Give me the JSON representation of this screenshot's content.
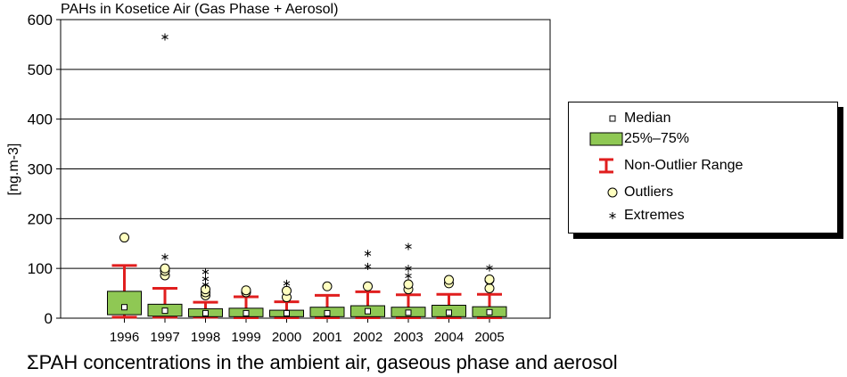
{
  "chart_data": {
    "type": "box",
    "title": "PAHs in Kosetice Air (Gas Phase + Aerosol)",
    "ylabel": "[ng.m-3]",
    "ylim": [
      0,
      600
    ],
    "yticks": [
      0,
      100,
      200,
      300,
      400,
      500,
      600
    ],
    "grid": true,
    "legend_position": "right",
    "categories": [
      "1996",
      "1997",
      "1998",
      "1999",
      "2000",
      "2001",
      "2002",
      "2003",
      "2004",
      "2005"
    ],
    "boxes": [
      {
        "year": "1996",
        "whisker_low": 2,
        "q1": 7,
        "median": 22,
        "q3": 54,
        "whisker_high": 106,
        "outliers": [
          162
        ],
        "extremes": []
      },
      {
        "year": "1997",
        "whisker_low": 2,
        "q1": 4,
        "median": 15,
        "q3": 28,
        "whisker_high": 60,
        "outliers": [
          86,
          95,
          100
        ],
        "extremes": [
          123,
          565
        ]
      },
      {
        "year": "1998",
        "whisker_low": 2,
        "q1": 3,
        "median": 10,
        "q3": 19,
        "whisker_high": 32,
        "outliers": [
          46,
          52,
          58
        ],
        "extremes": [
          67,
          79,
          93
        ]
      },
      {
        "year": "1999",
        "whisker_low": 1,
        "q1": 3,
        "median": 10,
        "q3": 20,
        "whisker_high": 43,
        "outliers": [
          52,
          56
        ],
        "extremes": []
      },
      {
        "year": "2000",
        "whisker_low": 1,
        "q1": 3,
        "median": 10,
        "q3": 16,
        "whisker_high": 33,
        "outliers": [
          42,
          55
        ],
        "extremes": [
          70
        ]
      },
      {
        "year": "2001",
        "whisker_low": 1,
        "q1": 3,
        "median": 10,
        "q3": 22,
        "whisker_high": 46,
        "outliers": [
          64
        ],
        "extremes": []
      },
      {
        "year": "2002",
        "whisker_low": 1,
        "q1": 3,
        "median": 14,
        "q3": 25,
        "whisker_high": 53,
        "outliers": [
          64
        ],
        "extremes": [
          104,
          130
        ]
      },
      {
        "year": "2003",
        "whisker_low": 1,
        "q1": 3,
        "median": 11,
        "q3": 22,
        "whisker_high": 47,
        "outliers": [
          58,
          68
        ],
        "extremes": [
          85,
          100,
          144
        ]
      },
      {
        "year": "2004",
        "whisker_low": 1,
        "q1": 3,
        "median": 11,
        "q3": 26,
        "whisker_high": 48,
        "outliers": [
          70,
          77
        ],
        "extremes": []
      },
      {
        "year": "2005",
        "whisker_low": 1,
        "q1": 3,
        "median": 12,
        "q3": 23,
        "whisker_high": 48,
        "outliers": [
          60,
          77,
          78
        ],
        "extremes": [
          101
        ]
      }
    ],
    "colors": {
      "box_fill": "#8fc854",
      "whisker": "#e01e1e",
      "outlier_fill": "#ffffc0",
      "median_fill": "#ffffff",
      "grid": "#000000"
    }
  },
  "legend": {
    "median": "Median",
    "box": "25%–75%",
    "range": "Non-Outlier Range",
    "outliers": "Outliers",
    "extremes": "Extremes"
  },
  "caption": "ΣPAH concentrations in the ambient air, gaseous phase and aerosol"
}
